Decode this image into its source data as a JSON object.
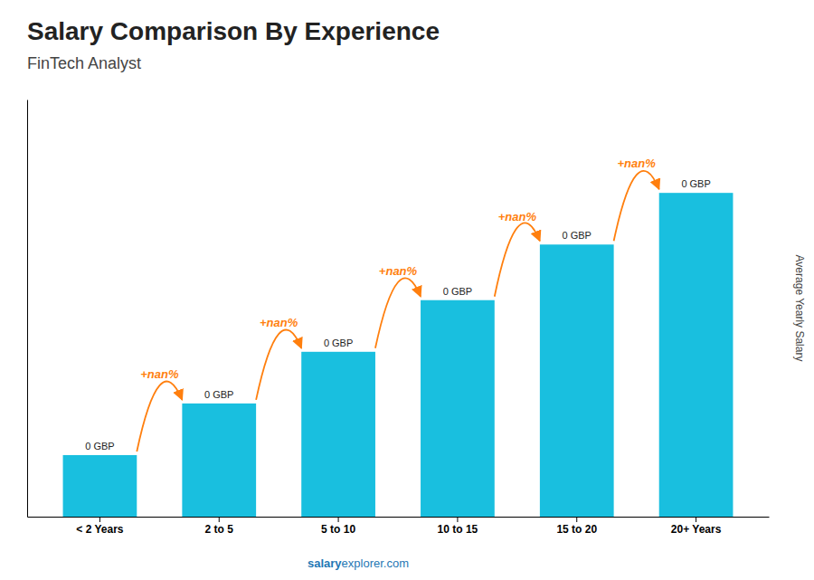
{
  "chart_data": {
    "type": "bar",
    "title": "Salary Comparison By Experience",
    "subtitle": "FinTech Analyst",
    "categories": [
      "< 2 Years",
      "2 to 5",
      "5 to 10",
      "10 to 15",
      "15 to 20",
      "20+ Years"
    ],
    "values": [
      0.155,
      0.285,
      0.415,
      0.545,
      0.685,
      0.815
    ],
    "value_labels": [
      "0 GBP",
      "0 GBP",
      "0 GBP",
      "0 GBP",
      "0 GBP",
      "0 GBP"
    ],
    "data_labels": true,
    "color": "#19BFDF",
    "ylabel": "Average Yearly Salary",
    "ylim": [
      0,
      1.05
    ],
    "yticks": [],
    "tick_labels": "x",
    "annotations": [
      "+nan%",
      "+nan%",
      "+nan%",
      "+nan%",
      "+nan%"
    ],
    "watermark": [
      "salary",
      "explorer.com"
    ]
  }
}
